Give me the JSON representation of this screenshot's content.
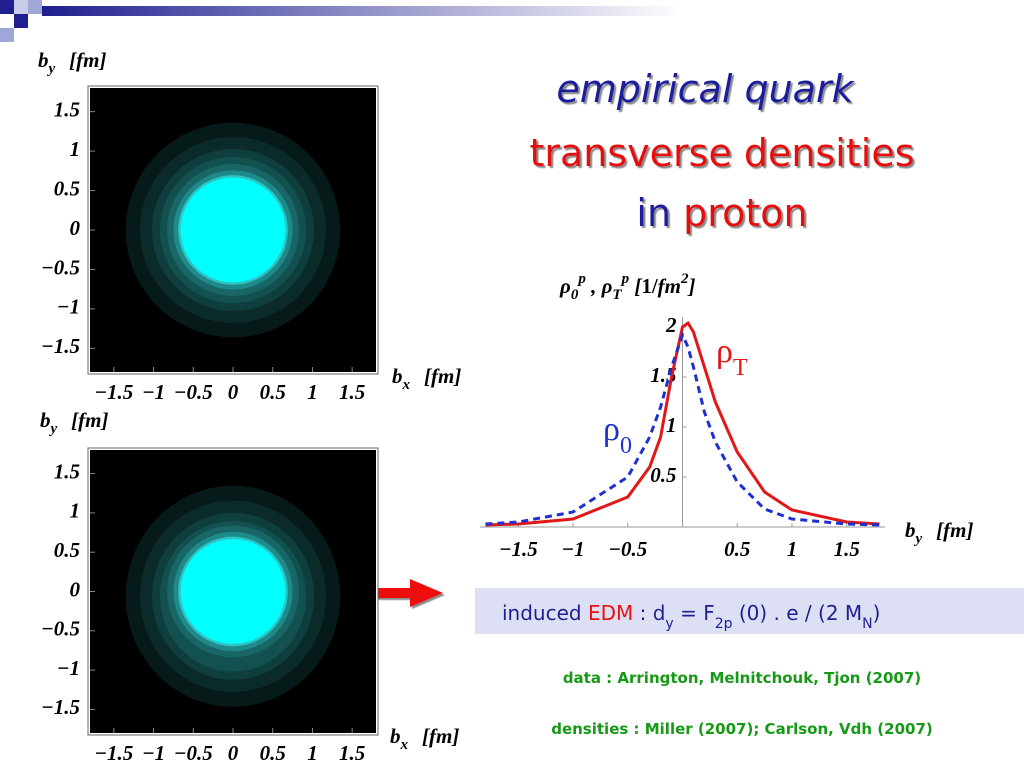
{
  "header": {
    "title": [
      "empirical quark",
      "transverse densities",
      "in",
      "proton"
    ]
  },
  "density_plots": [
    {
      "y_label": {
        "var": "b",
        "sub": "y",
        "unit": "[fm]"
      },
      "x_label": {
        "var": "b",
        "sub": "x",
        "unit": "[fm]"
      },
      "xlim": [
        -1.8,
        1.8
      ],
      "ylim": [
        -1.8,
        1.8
      ],
      "xticks": [
        {
          "value": -1.5,
          "label": "−1.5"
        },
        {
          "value": -1,
          "label": "−1"
        },
        {
          "value": -0.5,
          "label": "−0.5"
        },
        0,
        0.5,
        1,
        1.5
      ],
      "yticks": [
        {
          "value": -1.5,
          "label": "−1.5"
        },
        {
          "value": -1,
          "label": "−1"
        },
        {
          "value": -0.5,
          "label": "−0.5"
        },
        0,
        0.5,
        1,
        1.5
      ]
    },
    {
      "y_label": {
        "var": "b",
        "sub": "y",
        "unit": "[fm]"
      },
      "x_label": {
        "var": "b",
        "sub": "x",
        "unit": "[fm]"
      },
      "xlim": [
        -1.8,
        1.8
      ],
      "ylim": [
        -1.8,
        1.8
      ],
      "xticks": [
        {
          "value": -1.5,
          "label": "−1.5"
        },
        {
          "value": -1,
          "label": "−1"
        },
        {
          "value": -0.5,
          "label": "−0.5"
        },
        0,
        0.5,
        1,
        1.5
      ],
      "yticks": [
        {
          "value": -1.5,
          "label": "−1.5"
        },
        {
          "value": -1,
          "label": "−1"
        },
        {
          "value": -0.5,
          "label": "−0.5"
        },
        0,
        0.5,
        1,
        1.5
      ]
    }
  ],
  "chart_data": {
    "type": "line",
    "y_label": [
      "ρ",
      "0",
      "p",
      " , ",
      "ρ",
      "T",
      "p",
      "  [",
      "1/",
      "fm",
      "2",
      "]"
    ],
    "x_label": {
      "var": "b",
      "sub": "y",
      "unit": "[fm]"
    },
    "xlim": [
      -1.85,
      1.85
    ],
    "ylim": [
      0,
      2.1
    ],
    "xticks": [
      {
        "value": -1.5,
        "label": "−1.5"
      },
      {
        "value": -1,
        "label": "−1"
      },
      {
        "value": -0.5,
        "label": "−0.5"
      },
      0.5,
      1,
      1.5
    ],
    "yticks": [
      0.5,
      1,
      1.5,
      2
    ],
    "x": [
      -1.8,
      -1.5,
      -1,
      -0.5,
      -0.3,
      -0.2,
      -0.1,
      0,
      0.05,
      0.1,
      0.2,
      0.3,
      0.5,
      0.75,
      1,
      1.5,
      1.8
    ],
    "series": [
      {
        "name": {
          "base": "ρ",
          "sub": "T"
        },
        "color": "#e01818",
        "dash": false,
        "values": [
          0.02,
          0.03,
          0.08,
          0.3,
          0.6,
          0.9,
          1.5,
          2.0,
          2.04,
          1.95,
          1.6,
          1.25,
          0.75,
          0.35,
          0.17,
          0.05,
          0.03
        ]
      },
      {
        "name": {
          "base": "ρ",
          "sub": "0"
        },
        "color": "#2030d0",
        "dash": true,
        "values": [
          0.03,
          0.05,
          0.15,
          0.5,
          0.9,
          1.2,
          1.6,
          1.92,
          1.8,
          1.6,
          1.15,
          0.85,
          0.45,
          0.18,
          0.08,
          0.03,
          0.02
        ]
      }
    ]
  },
  "formula": [
    "induced ",
    "EDM",
    " : d",
    "y",
    " = F",
    "2p",
    " (0) . e / (2 M",
    "N",
    ")"
  ],
  "references": [
    "data : Arrington, Melnitchouk, Tjon (2007)",
    "densities : Miller (2007); Carlson, Vdh (2007)"
  ]
}
